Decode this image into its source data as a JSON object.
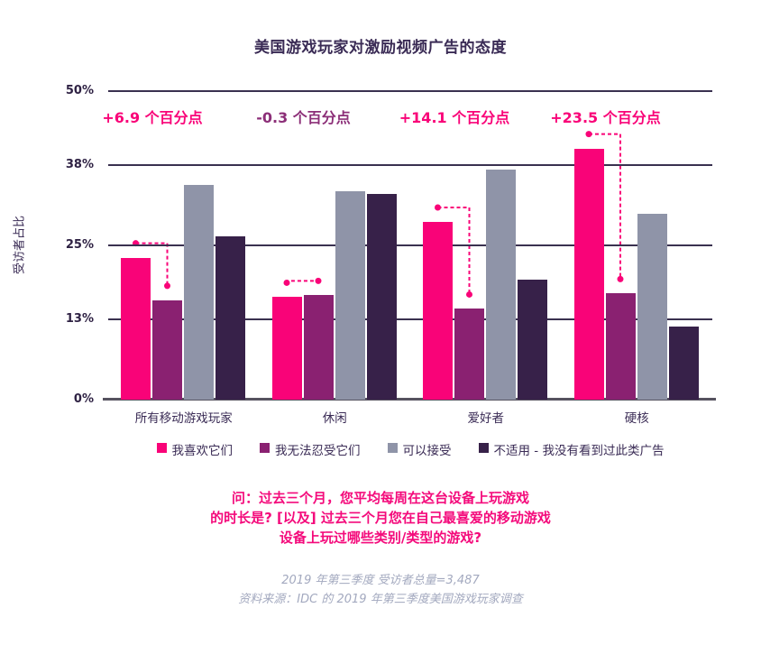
{
  "page": {
    "title": "美国游戏玩家对激励视频广告的态度"
  },
  "chart_data": {
    "type": "bar",
    "title": "美国游戏玩家对激励视频广告的态度",
    "xlabel": "",
    "ylabel": "受访者占比",
    "ylim": [
      0,
      50
    ],
    "grid": true,
    "legend_position": "bottom",
    "yticks": [
      {
        "value": 0,
        "label": "0%"
      },
      {
        "value": 13,
        "label": "13%"
      },
      {
        "value": 25,
        "label": "25%"
      },
      {
        "value": 38,
        "label": "38%"
      },
      {
        "value": 50,
        "label": "50%"
      }
    ],
    "categories": [
      "所有移动游戏玩家",
      "休闲",
      "爱好者",
      "硬核"
    ],
    "series": [
      {
        "name": "我喜欢它们",
        "color": "#F90378",
        "values": [
          23.0,
          16.6,
          28.8,
          40.7
        ]
      },
      {
        "name": "我无法忍受它们",
        "color": "#8A2171",
        "values": [
          16.1,
          16.9,
          14.7,
          17.2
        ]
      },
      {
        "name": "可以接受",
        "color": "#8F94A8",
        "values": [
          34.8,
          33.8,
          37.3,
          30.1
        ]
      },
      {
        "name": "不适用 - 我没有看到过此类广告",
        "color": "#372149",
        "values": [
          26.5,
          33.4,
          19.5,
          11.8
        ]
      }
    ],
    "annotations": [
      {
        "text": "+6.9 个百分点",
        "color": "#F90378"
      },
      {
        "text": "-0.3 个百分点",
        "color": "#8C2F78"
      },
      {
        "text": "+14.1 个百分点",
        "color": "#F90378"
      },
      {
        "text": "+23.5 个百分点",
        "color": "#F90378"
      }
    ],
    "connector": {
      "compare_series": [
        0,
        1
      ],
      "color": "#F90378"
    }
  },
  "question": {
    "lines": [
      "问：过去三个月，您平均每周在这台设备上玩游戏",
      "的时长是? [以及] 过去三个月您在自己最喜爱的移动游戏",
      "设备上玩过哪些类别/类型的游戏?"
    ]
  },
  "footer": {
    "lines": [
      "2019 年第三季度 受访者总量=3,487",
      "资料来源：IDC 的 2019 年第三季度美国游戏玩家调查"
    ]
  }
}
